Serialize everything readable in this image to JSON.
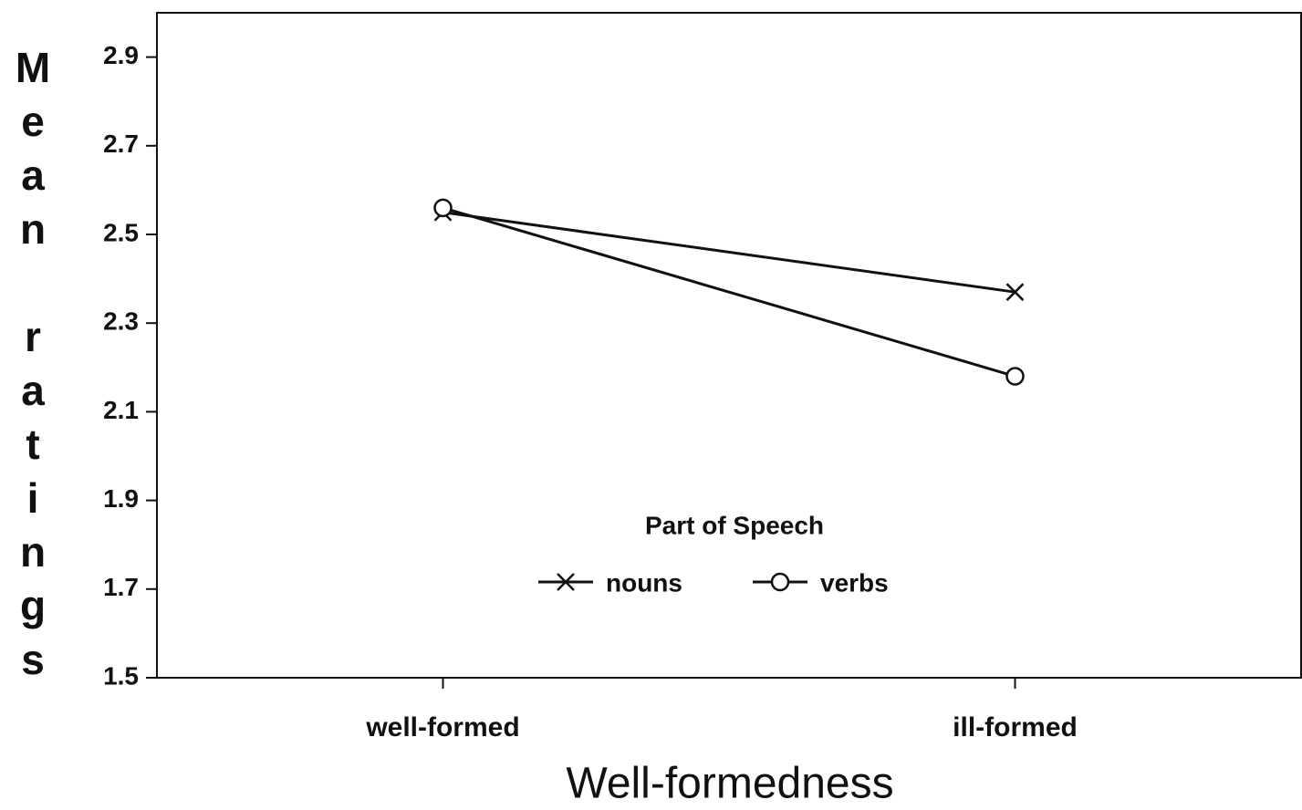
{
  "chart_data": {
    "type": "line",
    "xlabel": "Well-formedness",
    "ylabel": "Mean ratings",
    "categories": [
      "well-formed",
      "ill-formed"
    ],
    "series": [
      {
        "name": "nouns",
        "color": "#111111",
        "marker": "x",
        "values": [
          2.55,
          2.37
        ]
      },
      {
        "name": "verbs",
        "color": "#111111",
        "marker": "o",
        "values": [
          2.56,
          2.18
        ]
      }
    ],
    "legend_title": "Part of Speech",
    "ylim": [
      1.5,
      3.0
    ],
    "yticks": [
      1.5,
      1.7,
      1.9,
      2.1,
      2.3,
      2.5,
      2.7,
      2.9
    ],
    "grid": false
  }
}
